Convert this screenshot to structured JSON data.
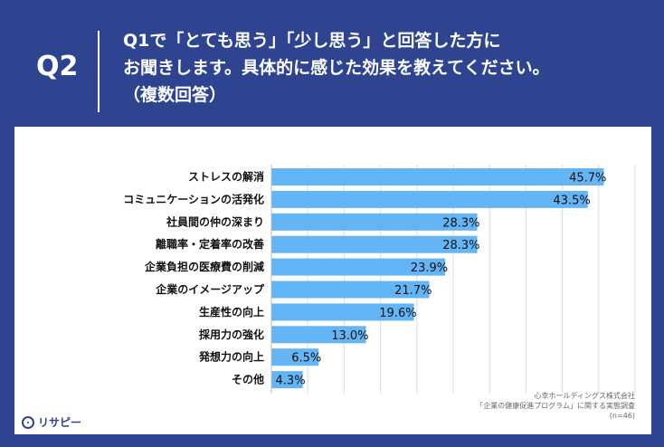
{
  "header": {
    "qnum": "Q2",
    "question": "Q1で「とても思う」「少し思う」と回答した方に\nお聞きします。具体的に感じた効果を教えてください。\n（複数回答）"
  },
  "chart_data": {
    "type": "bar",
    "orientation": "horizontal",
    "categories": [
      "ストレスの解消",
      "コミュニケーションの活発化",
      "社員間の仲の深まり",
      "離職率・定着率の改善",
      "企業負担の医療費の削減",
      "企業のイメージアップ",
      "生産性の向上",
      "採用力の強化",
      "発想力の向上",
      "その他"
    ],
    "values": [
      45.7,
      43.5,
      28.3,
      28.3,
      23.9,
      21.7,
      19.6,
      13.0,
      6.5,
      4.3
    ],
    "value_labels": [
      "45.7%",
      "43.5%",
      "28.3%",
      "28.3%",
      "23.9%",
      "21.7%",
      "19.6%",
      "13.0%",
      "6.5%",
      "4.3%"
    ],
    "xlim": [
      0,
      50
    ],
    "grid": true,
    "bar_color": "#64b5f6"
  },
  "source": {
    "line1": "心幸ホールディングス株式会社",
    "line2": "「企業の健康促進プログラム」に関する実態調査",
    "line3": "(n=46)"
  },
  "logo": {
    "text": "リサピー"
  }
}
